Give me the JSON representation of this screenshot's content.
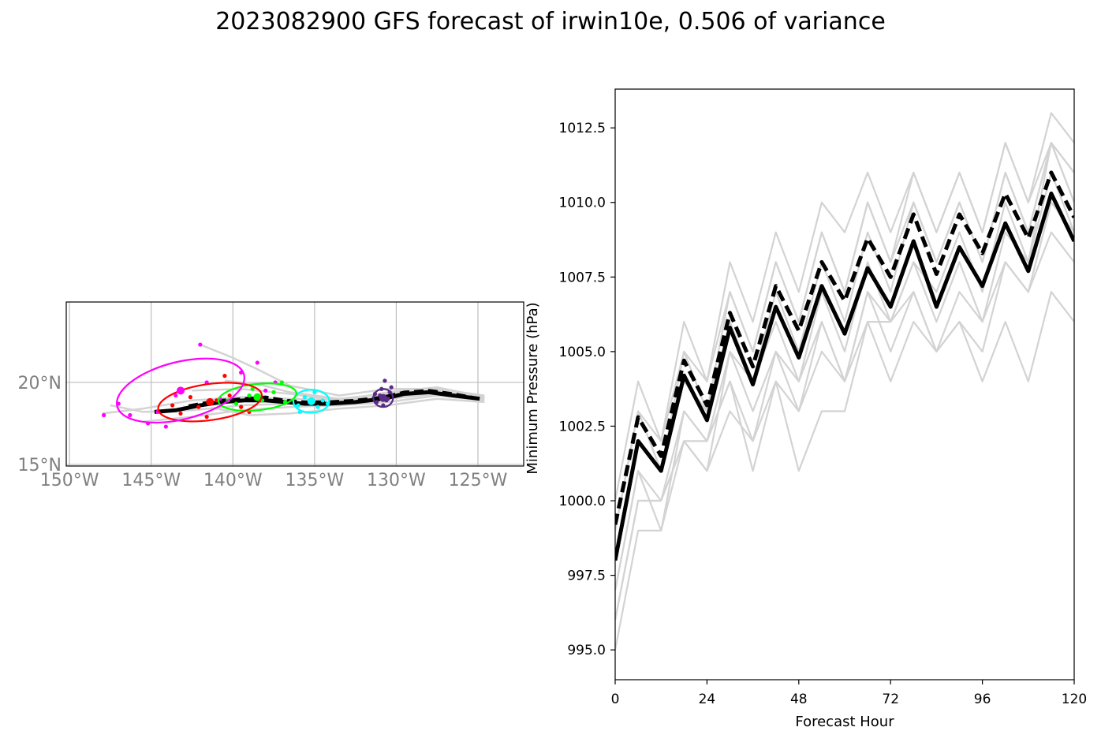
{
  "title": "2023082900 GFS forecast of irwin10e, 0.506 of variance",
  "chart_data": [
    {
      "type": "scatter",
      "panel": "track-map",
      "x_ticks": [
        "150°W",
        "145°W",
        "140°W",
        "135°W",
        "130°W",
        "125°W"
      ],
      "y_ticks": [
        "15°N",
        "20°N"
      ],
      "xlim": [
        -150.2,
        -122.2
      ],
      "ylim": [
        14.9,
        24.9
      ],
      "grid": true,
      "colors": {
        "ensemble": "#d3d3d3",
        "mean": "#000000",
        "day1": "#5b2a86",
        "day2": "#00ffff",
        "day3": "#00ff00",
        "day4": "#ff0000",
        "day5": "#ff00ff"
      },
      "mean_track": [
        [
          -124.9,
          19.0
        ],
        [
          -126.5,
          19.2
        ],
        [
          -128.0,
          19.4
        ],
        [
          -129.5,
          19.3
        ],
        [
          -130.8,
          19.0
        ],
        [
          -132.5,
          18.8
        ],
        [
          -134.2,
          18.7
        ],
        [
          -135.6,
          18.7
        ],
        [
          -136.8,
          18.8
        ],
        [
          -138.0,
          18.9
        ],
        [
          -139.3,
          18.9
        ],
        [
          -140.7,
          18.8
        ],
        [
          -142.0,
          18.6
        ],
        [
          -143.5,
          18.3
        ],
        [
          -144.8,
          18.2
        ]
      ],
      "control_track": [
        [
          -124.9,
          19.0
        ],
        [
          -126.5,
          19.3
        ],
        [
          -128.0,
          19.5
        ],
        [
          -129.5,
          19.4
        ],
        [
          -130.8,
          19.1
        ],
        [
          -132.5,
          18.9
        ],
        [
          -134.2,
          18.8
        ],
        [
          -135.6,
          18.8
        ],
        [
          -136.8,
          18.9
        ],
        [
          -138.0,
          19.1
        ],
        [
          -139.3,
          19.0
        ],
        [
          -140.7,
          18.9
        ],
        [
          -142.0,
          18.7
        ],
        [
          -143.0,
          18.5
        ]
      ],
      "ensemble_tracks": [
        [
          [
            -124.6,
            19.1
          ],
          [
            -127.5,
            19.7
          ],
          [
            -130.5,
            19.4
          ],
          [
            -133.5,
            18.9
          ],
          [
            -136.5,
            19.3
          ],
          [
            -139.5,
            19.6
          ],
          [
            -142.5,
            19.5
          ]
        ],
        [
          [
            -124.6,
            18.9
          ],
          [
            -127.5,
            19.2
          ],
          [
            -130.5,
            18.8
          ],
          [
            -133.5,
            18.6
          ],
          [
            -136.5,
            18.5
          ],
          [
            -139.5,
            18.3
          ],
          [
            -142.5,
            17.9
          ],
          [
            -145.5,
            17.6
          ]
        ],
        [
          [
            -124.6,
            19.2
          ],
          [
            -127.5,
            19.6
          ],
          [
            -130.5,
            19.6
          ],
          [
            -133.5,
            19.2
          ],
          [
            -136.5,
            19.8
          ],
          [
            -138.5,
            20.8
          ],
          [
            -140.0,
            21.5
          ],
          [
            -142.0,
            22.3
          ]
        ],
        [
          [
            -124.6,
            19.0
          ],
          [
            -127.5,
            19.3
          ],
          [
            -130.5,
            19.0
          ],
          [
            -133.5,
            18.6
          ],
          [
            -136.5,
            18.7
          ],
          [
            -139.5,
            18.6
          ],
          [
            -142.5,
            18.3
          ],
          [
            -145.5,
            18.2
          ],
          [
            -147.5,
            18.6
          ]
        ],
        [
          [
            -124.6,
            19.0
          ],
          [
            -127.5,
            19.5
          ],
          [
            -130.5,
            19.3
          ],
          [
            -133.5,
            19.0
          ],
          [
            -136.5,
            19.4
          ],
          [
            -138.5,
            19.9
          ],
          [
            -140.5,
            20.1
          ]
        ],
        [
          [
            -124.6,
            18.8
          ],
          [
            -127.5,
            19.0
          ],
          [
            -130.5,
            18.6
          ],
          [
            -133.5,
            18.4
          ],
          [
            -136.5,
            18.1
          ],
          [
            -139.0,
            18.0
          ],
          [
            -141.0,
            18.4
          ]
        ],
        [
          [
            -124.6,
            19.1
          ],
          [
            -127.5,
            19.4
          ],
          [
            -130.5,
            19.1
          ],
          [
            -133.5,
            18.9
          ],
          [
            -136.5,
            19.0
          ],
          [
            -139.5,
            19.1
          ],
          [
            -142.5,
            18.9
          ],
          [
            -145.5,
            18.4
          ],
          [
            -148.0,
            18.1
          ]
        ]
      ],
      "scatter_points": [
        {
          "day": "day1",
          "pts": [
            [
              -130.6,
              18.9
            ],
            [
              -131.0,
              19.2
            ],
            [
              -130.8,
              18.6
            ],
            [
              -130.4,
              19.4
            ],
            [
              -131.2,
              18.8
            ],
            [
              -130.9,
              19.6
            ],
            [
              -130.5,
              19.0
            ],
            [
              -131.3,
              19.3
            ],
            [
              -130.7,
              20.1
            ],
            [
              -130.3,
              19.7
            ]
          ]
        },
        {
          "day": "day2",
          "pts": [
            [
              -135.2,
              18.8
            ],
            [
              -134.8,
              18.5
            ],
            [
              -135.6,
              19.1
            ],
            [
              -135.9,
              18.2
            ],
            [
              -134.5,
              18.9
            ],
            [
              -135.0,
              19.4
            ],
            [
              -136.0,
              18.6
            ],
            [
              -134.2,
              18.7
            ]
          ]
        },
        {
          "day": "day3",
          "pts": [
            [
              -139.0,
              19.2
            ],
            [
              -138.2,
              18.9
            ],
            [
              -137.5,
              19.4
            ],
            [
              -139.8,
              18.7
            ],
            [
              -137.0,
              20.0
            ],
            [
              -138.8,
              19.6
            ],
            [
              -140.3,
              18.9
            ],
            [
              -136.8,
              18.8
            ]
          ]
        },
        {
          "day": "day4",
          "pts": [
            [
              -142.1,
              18.5
            ],
            [
              -141.0,
              18.9
            ],
            [
              -140.2,
              19.2
            ],
            [
              -143.2,
              18.1
            ],
            [
              -139.5,
              18.5
            ],
            [
              -142.6,
              19.1
            ],
            [
              -140.5,
              20.4
            ],
            [
              -141.6,
              17.9
            ],
            [
              -139.0,
              18.2
            ],
            [
              -143.7,
              18.6
            ]
          ]
        },
        {
          "day": "day5",
          "pts": [
            [
              -144.6,
              18.2
            ],
            [
              -147.0,
              18.7
            ],
            [
              -142.0,
              22.3
            ],
            [
              -139.5,
              20.6
            ],
            [
              -138.5,
              21.2
            ],
            [
              -145.2,
              17.5
            ],
            [
              -147.9,
              18.0
            ],
            [
              -143.5,
              19.2
            ],
            [
              -137.4,
              20.0
            ],
            [
              -140.8,
              19.0
            ],
            [
              -146.3,
              18.0
            ],
            [
              -141.6,
              20.0
            ],
            [
              -144.1,
              17.3
            ],
            [
              -138.0,
              19.5
            ]
          ]
        }
      ],
      "ellipses": [
        {
          "day": "day1",
          "center": [
            -130.8,
            19.05
          ],
          "rx": 0.6,
          "ry": 0.55,
          "angle": 0
        },
        {
          "day": "day2",
          "center": [
            -135.2,
            18.85
          ],
          "rx": 1.1,
          "ry": 0.7,
          "angle": 0
        },
        {
          "day": "day3",
          "center": [
            -138.5,
            19.1
          ],
          "rx": 2.4,
          "ry": 0.8,
          "angle": 6
        },
        {
          "day": "day4",
          "center": [
            -141.4,
            18.8
          ],
          "rx": 3.2,
          "ry": 1.1,
          "angle": 8
        },
        {
          "day": "day5",
          "center": [
            -143.2,
            19.5
          ],
          "rx": 4.0,
          "ry": 1.75,
          "angle": 14
        }
      ]
    },
    {
      "type": "line",
      "panel": "pressure",
      "xlabel": "Forecast Hour",
      "ylabel": "Minimum Pressure (hPa)",
      "xlim": [
        0,
        120
      ],
      "ylim": [
        994.0,
        1013.8
      ],
      "x_ticks": [
        0,
        24,
        48,
        72,
        96,
        120
      ],
      "y_ticks": [
        995.0,
        997.5,
        1000.0,
        1002.5,
        1005.0,
        1007.5,
        1010.0,
        1012.5
      ],
      "x": [
        0,
        6,
        12,
        18,
        24,
        30,
        36,
        42,
        48,
        54,
        60,
        66,
        72,
        78,
        84,
        90,
        96,
        102,
        108,
        114,
        120
      ],
      "mean": [
        998.0,
        1002.0,
        1001.0,
        1004.2,
        1002.7,
        1005.8,
        1003.9,
        1006.5,
        1004.8,
        1007.2,
        1005.6,
        1007.8,
        1006.5,
        1008.7,
        1006.5,
        1008.5,
        1007.2,
        1009.3,
        1007.7,
        1010.3,
        1008.7
      ],
      "control": [
        999.2,
        1002.8,
        1001.5,
        1004.7,
        1003.2,
        1006.3,
        1004.5,
        1007.2,
        1005.7,
        1008.0,
        1006.7,
        1008.8,
        1007.5,
        1009.6,
        1007.6,
        1009.6,
        1008.3,
        1010.3,
        1008.8,
        1011.0,
        1009.5
      ],
      "ensemble": [
        [
          995.0,
          999.0,
          999.0,
          1002.0,
          1002.0,
          1004.0,
          1001.0,
          1004.0,
          1001.0,
          1003.0,
          1003.0,
          1006.0,
          1006.0,
          1007.0,
          1005.0,
          1006.0,
          1005.0,
          1008.0,
          1007.0,
          1010.0,
          1009.0
        ],
        [
          996.0,
          1000.0,
          1000.0,
          1002.0,
          1001.0,
          1005.0,
          1003.0,
          1005.0,
          1004.0,
          1006.0,
          1004.0,
          1007.0,
          1006.0,
          1008.0,
          1006.0,
          1008.0,
          1006.0,
          1009.0,
          1008.0,
          1011.0,
          1009.0
        ],
        [
          997.0,
          1001.0,
          1000.0,
          1003.0,
          1002.0,
          1005.0,
          1004.0,
          1006.0,
          1004.0,
          1007.0,
          1005.0,
          1008.0,
          1006.0,
          1008.0,
          1007.0,
          1009.0,
          1007.0,
          1010.0,
          1008.0,
          1012.0,
          1010.0
        ],
        [
          998.0,
          1002.0,
          1001.0,
          1004.0,
          1003.0,
          1006.0,
          1004.0,
          1007.0,
          1005.0,
          1008.0,
          1006.0,
          1009.0,
          1007.0,
          1010.0,
          1008.0,
          1010.0,
          1008.0,
          1011.0,
          1009.0,
          1012.0,
          1011.0
        ],
        [
          999.0,
          1003.0,
          1002.0,
          1005.0,
          1004.0,
          1007.0,
          1005.0,
          1008.0,
          1006.0,
          1009.0,
          1007.0,
          1010.0,
          1008.0,
          1011.0,
          1009.0,
          1011.0,
          1009.0,
          1012.0,
          1010.0,
          1013.0,
          1012.0
        ],
        [
          1000.0,
          1004.0,
          1002.0,
          1006.0,
          1004.0,
          1008.0,
          1006.0,
          1009.0,
          1007.0,
          1010.0,
          1009.0,
          1011.0,
          1009.0,
          1011.0,
          1009.0,
          1011.0,
          1009.0,
          1012.0,
          1010.0,
          1012.0,
          1011.0
        ],
        [
          997.0,
          1001.0,
          999.0,
          1003.0,
          1002.0,
          1004.0,
          1002.0,
          1005.0,
          1003.0,
          1006.0,
          1004.0,
          1007.0,
          1005.0,
          1007.0,
          1005.0,
          1007.0,
          1006.0,
          1008.0,
          1007.0,
          1009.0,
          1008.0
        ],
        [
          996.0,
          1000.0,
          1000.0,
          1002.0,
          1001.0,
          1003.0,
          1002.0,
          1004.0,
          1003.0,
          1005.0,
          1004.0,
          1006.0,
          1004.0,
          1006.0,
          1005.0,
          1006.0,
          1004.0,
          1006.0,
          1004.0,
          1007.0,
          1006.0
        ],
        [
          999.0,
          1003.0,
          1001.0,
          1005.0,
          1003.0,
          1007.0,
          1005.0,
          1008.0,
          1006.0,
          1009.0,
          1007.0,
          1010.0,
          1008.0,
          1010.0,
          1008.0,
          1010.0,
          1008.0,
          1011.0,
          1009.0,
          1012.0,
          1010.0
        ]
      ],
      "colors": {
        "ensemble": "#d3d3d3",
        "mean": "#000000",
        "control": "#000000"
      }
    }
  ]
}
